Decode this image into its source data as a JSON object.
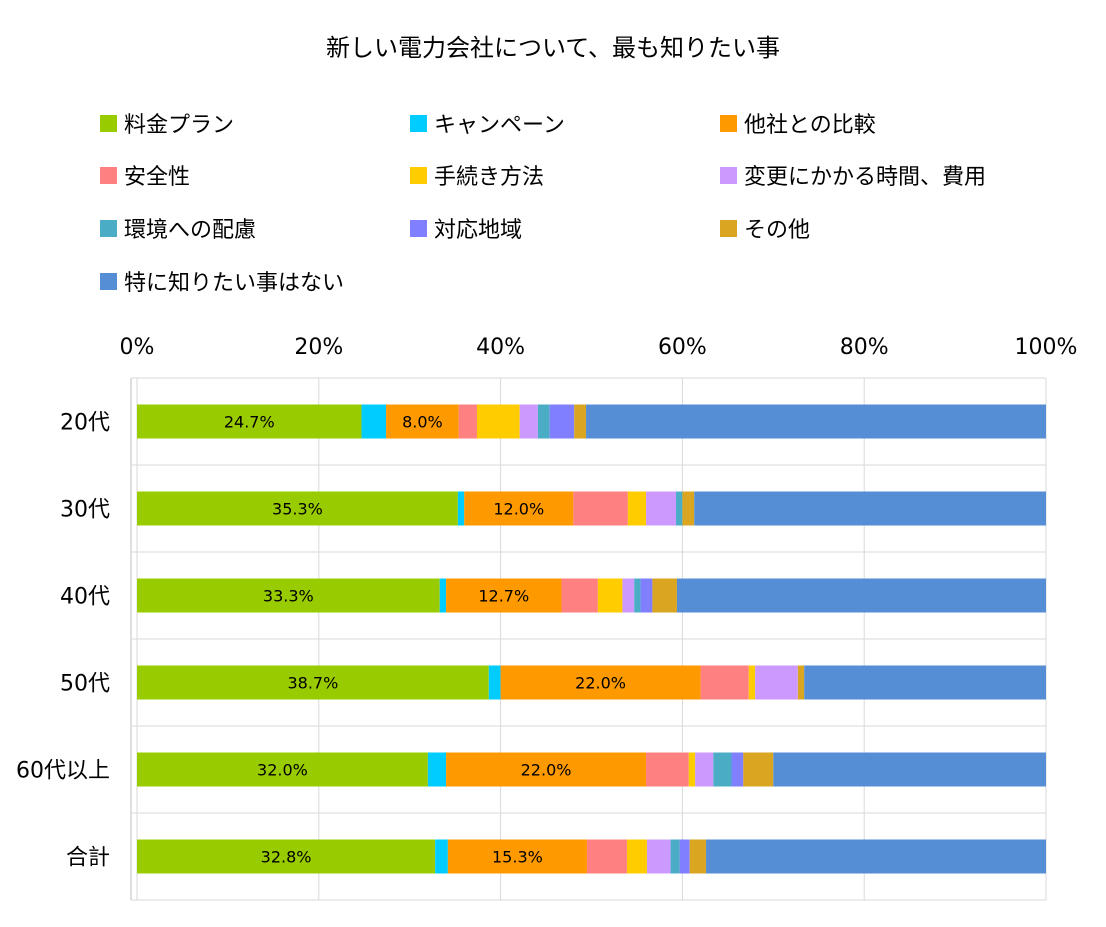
{
  "chart_data": {
    "type": "bar",
    "orientation": "horizontal",
    "stacked": "percent",
    "title": "新しい電力会社について、最も知りたい事",
    "categories": [
      "20代",
      "30代",
      "40代",
      "50代",
      "60代以上",
      "合計"
    ],
    "xlim": [
      0,
      100
    ],
    "x_ticks": [
      "0%",
      "20%",
      "40%",
      "60%",
      "80%",
      "100%"
    ],
    "x_axis_position": "top",
    "grid": true,
    "legend_position": "top",
    "series": [
      {
        "name": "料金プラン",
        "color": "#99cc00",
        "values": [
          24.7,
          35.3,
          33.3,
          38.7,
          32.0,
          32.8
        ],
        "labels": [
          "24.7%",
          "35.3%",
          "33.3%",
          "38.7%",
          "32.0%",
          "32.8%"
        ]
      },
      {
        "name": "キャンペーン",
        "color": "#00ccff",
        "values": [
          2.7,
          0.7,
          0.7,
          1.3,
          2.0,
          1.4
        ]
      },
      {
        "name": "他社との比較",
        "color": "#ff9900",
        "values": [
          8.0,
          12.0,
          12.7,
          22.0,
          22.0,
          15.3
        ],
        "labels": [
          "8.0%",
          "12.0%",
          "12.7%",
          "22.0%",
          "22.0%",
          "15.3%"
        ]
      },
      {
        "name": "安全性",
        "color": "#ff8080",
        "values": [
          2.0,
          6.0,
          4.0,
          5.3,
          4.7,
          4.4
        ]
      },
      {
        "name": "手続き方法",
        "color": "#ffcc00",
        "values": [
          4.7,
          2.0,
          2.7,
          0.7,
          0.7,
          2.2
        ]
      },
      {
        "name": "変更にかかる時間、費用",
        "color": "#cc99ff",
        "values": [
          2.0,
          3.3,
          1.3,
          4.7,
          2.0,
          2.6
        ]
      },
      {
        "name": "環境への配慮",
        "color": "#4bacc6",
        "values": [
          1.3,
          0.7,
          0.7,
          0.0,
          2.0,
          1.0
        ]
      },
      {
        "name": "対応地域",
        "color": "#7f7fff",
        "values": [
          2.7,
          0.0,
          1.3,
          0.0,
          1.3,
          1.1
        ]
      },
      {
        "name": "その他",
        "color": "#daa520",
        "values": [
          1.3,
          1.3,
          2.7,
          0.7,
          3.3,
          1.8
        ]
      },
      {
        "name": "特に知りたい事はない",
        "color": "#558ed5",
        "values": [
          50.6,
          38.7,
          40.6,
          26.6,
          30.0,
          37.4
        ]
      }
    ]
  }
}
